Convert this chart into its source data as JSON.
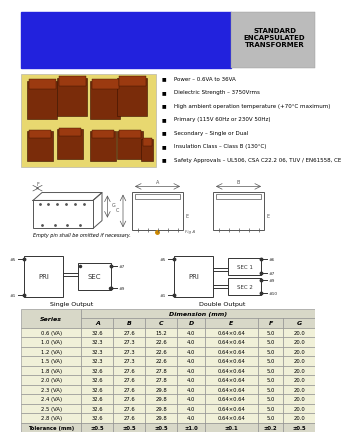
{
  "title": "STANDARD\nENCAPSULATED\nTRANSFORMER",
  "header_blue": "#2222dd",
  "header_gray": "#bbbbbb",
  "bullet_points": [
    "Power – 0.6VA to 36VA",
    "Dielectric Strength – 3750Vrms",
    "High ambient operation temperature (+70°C maximum)",
    "Primary (115V 60Hz or 230V 50Hz)",
    "Secondary – Single or Dual",
    "Insulation Class – Class B (130°C)",
    "Safety Approvals – UL506, CSA C22.2 06, TUV / EN61558, CE"
  ],
  "image_bg": "#e8d870",
  "table_header": "Dimension (mm)",
  "table_cols": [
    "Series",
    "A",
    "B",
    "C",
    "D",
    "E",
    "F",
    "G"
  ],
  "table_data": [
    [
      "0.6 (VA)",
      "32.6",
      "27.6",
      "15.2",
      "4.0",
      "0.64×0.64",
      "5.0",
      "20.0"
    ],
    [
      "1.0 (VA)",
      "32.3",
      "27.3",
      "22.6",
      "4.0",
      "0.64×0.64",
      "5.0",
      "20.0"
    ],
    [
      "1.2 (VA)",
      "32.3",
      "27.3",
      "22.6",
      "4.0",
      "0.64×0.64",
      "5.0",
      "20.0"
    ],
    [
      "1.5 (VA)",
      "32.3",
      "27.3",
      "22.6",
      "4.0",
      "0.64×0.64",
      "5.0",
      "20.0"
    ],
    [
      "1.8 (VA)",
      "32.6",
      "27.6",
      "27.8",
      "4.0",
      "0.64×0.64",
      "5.0",
      "20.0"
    ],
    [
      "2.0 (VA)",
      "32.6",
      "27.6",
      "27.8",
      "4.0",
      "0.64×0.64",
      "5.0",
      "20.0"
    ],
    [
      "2.3 (VA)",
      "32.6",
      "27.6",
      "29.8",
      "4.0",
      "0.64×0.64",
      "5.0",
      "20.0"
    ],
    [
      "2.4 (VA)",
      "32.6",
      "27.6",
      "29.8",
      "4.0",
      "0.64×0.64",
      "5.0",
      "20.0"
    ],
    [
      "2.5 (VA)",
      "32.6",
      "27.6",
      "29.8",
      "4.0",
      "0.64×0.64",
      "5.0",
      "20.0"
    ],
    [
      "2.8 (VA)",
      "32.6",
      "27.6",
      "29.8",
      "4.0",
      "0.64×0.64",
      "5.0",
      "20.0"
    ],
    [
      "Tolerance (mm)",
      "±0.5",
      "±0.5",
      "±0.5",
      "±1.0",
      "±0.1",
      "±0.2",
      "±0.5"
    ]
  ],
  "table_row_light": "#f0f0d8",
  "table_header_color": "#d8d8c8",
  "gc": "#555555",
  "lc": "#333333",
  "brown": "#7a2c0a"
}
